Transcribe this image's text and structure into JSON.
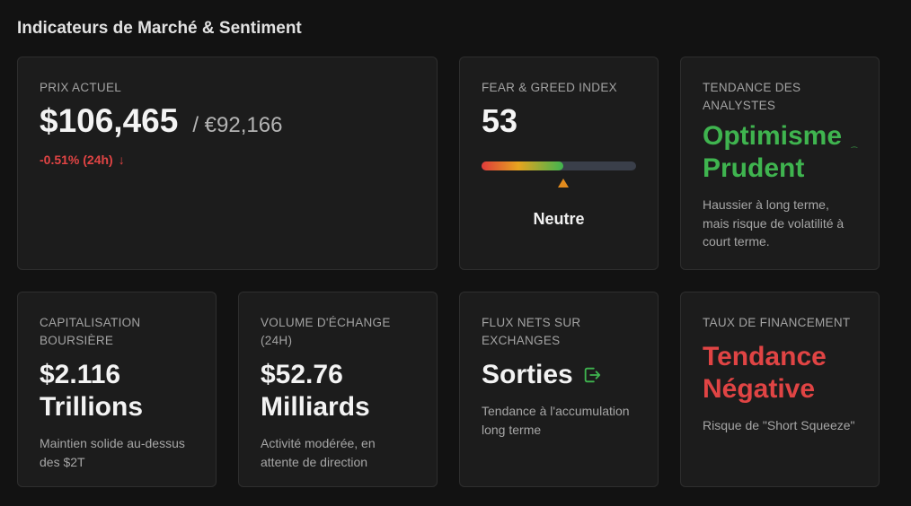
{
  "section_title": "Indicateurs de Marché & Sentiment",
  "price": {
    "label": "PRIX ACTUEL",
    "usd": "$106,465",
    "eur": "/ €92,166",
    "change": "-0.51% (24h)",
    "change_arrow": "↓"
  },
  "fear_greed": {
    "label": "FEAR & GREED INDEX",
    "value": "53",
    "value_pct": 53,
    "status": "Neutre"
  },
  "analysts": {
    "label": "TENDANCE DES ANALYSTES",
    "trend": "Optimisme Prudent",
    "description": "Haussier à long terme, mais risque de volatilité à court terme."
  },
  "market_cap": {
    "label": "CAPITALISATION BOURSIÈRE",
    "value": "$2.116 Trillions",
    "description": "Maintien solide au-dessus des $2T"
  },
  "volume": {
    "label": "VOLUME D'ÉCHANGE (24H)",
    "value": "$52.76 Milliards",
    "description": "Activité modérée, en attente de direction"
  },
  "flux": {
    "label": "FLUX NETS SUR EXCHANGES",
    "value": "Sorties",
    "icon": "exit-icon",
    "description": "Tendance à l'accumulation long terme"
  },
  "funding": {
    "label": "TAUX DE FINANCEMENT",
    "value": "Tendance Négative",
    "description": "Risque de \"Short Squeeze\""
  },
  "colors": {
    "positive": "#3fb44f",
    "negative": "#e04444",
    "background": "#121212",
    "card": "#1c1c1c"
  }
}
